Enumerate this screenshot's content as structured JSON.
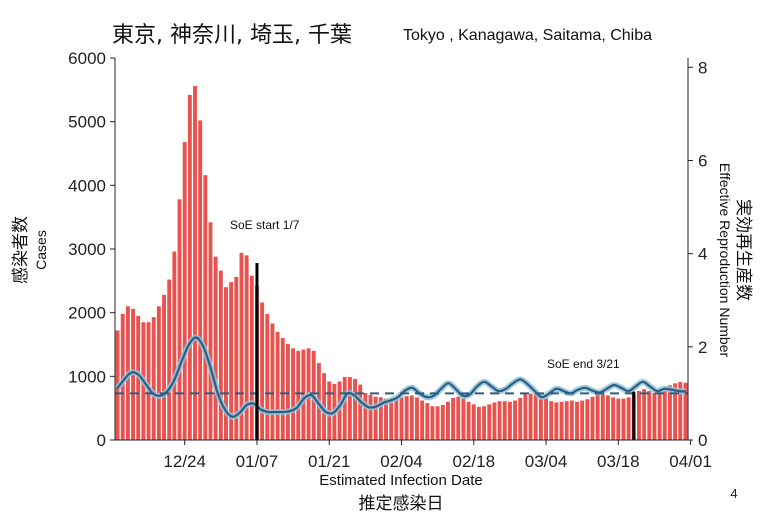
{
  "title": {
    "jp": "東京, 神奈川, 埼玉, 千葉",
    "en": "Tokyo , Kanagawa, Saitama, Chiba"
  },
  "page_number": "4",
  "chart_data": {
    "type": "bar",
    "left_axis": {
      "label_jp": "感染者数",
      "label_en": "Cases",
      "ylim": [
        0,
        6000
      ],
      "ticks": [
        "0",
        "1000",
        "2000",
        "3000",
        "4000",
        "5000",
        "6000"
      ]
    },
    "right_axis": {
      "label_jp": "実効再生産数",
      "label_en": "Effective Reproduction Number",
      "ylim": [
        0,
        8.2
      ],
      "ticks": [
        "0",
        "2",
        "4",
        "6",
        "8"
      ]
    },
    "xaxis": {
      "label_en": "Estimated Infection Date",
      "label_jp": "推定感染日",
      "ticks": [
        "12/24",
        "01/07",
        "01/21",
        "02/04",
        "02/18",
        "03/04",
        "03/18",
        "04/01"
      ]
    },
    "bar_color": "#e8534f",
    "line_color": "#2e5d80",
    "ci_color": "#8fc3dc",
    "dates_start": "12/11",
    "cases": [
      1720,
      1980,
      2100,
      2060,
      1950,
      1850,
      1850,
      1930,
      2100,
      2280,
      2520,
      2960,
      3780,
      4680,
      5420,
      5560,
      5020,
      4160,
      3420,
      2880,
      2660,
      2400,
      2480,
      2560,
      2940,
      2900,
      2580,
      2420,
      2160,
      1980,
      1830,
      1700,
      1600,
      1510,
      1440,
      1400,
      1420,
      1440,
      1400,
      1210,
      1050,
      920,
      880,
      920,
      990,
      990,
      960,
      870,
      740,
      710,
      680,
      670,
      650,
      640,
      650,
      670,
      690,
      700,
      670,
      620,
      580,
      530,
      530,
      550,
      600,
      660,
      680,
      650,
      600,
      560,
      520,
      530,
      560,
      590,
      610,
      610,
      600,
      620,
      660,
      720,
      730,
      720,
      690,
      650,
      610,
      590,
      600,
      610,
      620,
      600,
      620,
      640,
      680,
      720,
      720,
      700,
      670,
      650,
      650,
      670,
      720,
      770,
      800,
      770,
      740,
      760,
      810,
      860,
      890,
      910,
      900
    ],
    "r_values": [
      1.1,
      1.3,
      1.45,
      1.4,
      1.2,
      1.0,
      0.95,
      1.05,
      1.3,
      1.7,
      2.05,
      2.2,
      2.0,
      1.55,
      1.0,
      0.65,
      0.5,
      0.58,
      0.75,
      0.78,
      0.65,
      0.6,
      0.6,
      0.6,
      0.62,
      0.7,
      0.9,
      0.96,
      0.78,
      0.6,
      0.58,
      0.75,
      1.0,
      0.95,
      0.8,
      0.7,
      0.72,
      0.8,
      0.85,
      0.92,
      1.06,
      1.12,
      1.0,
      0.92,
      0.95,
      1.1,
      1.22,
      1.1,
      0.95,
      0.98,
      1.15,
      1.25,
      1.15,
      1.05,
      1.1,
      1.22,
      1.3,
      1.2,
      1.05,
      0.92,
      1.0,
      1.1,
      1.05,
      1.0,
      1.08,
      1.12,
      1.06,
      1.02,
      1.1,
      1.18,
      1.12,
      1.05,
      1.15,
      1.25,
      1.15,
      1.05,
      1.1,
      1.08,
      1.05,
      1.04
    ],
    "r_threshold": 1.0,
    "annotations": {
      "soe_start_label": "SoE start 1/7",
      "soe_start_date": "01/07",
      "soe_end_label": "SoE end 3/21",
      "soe_end_date": "03/21"
    }
  }
}
